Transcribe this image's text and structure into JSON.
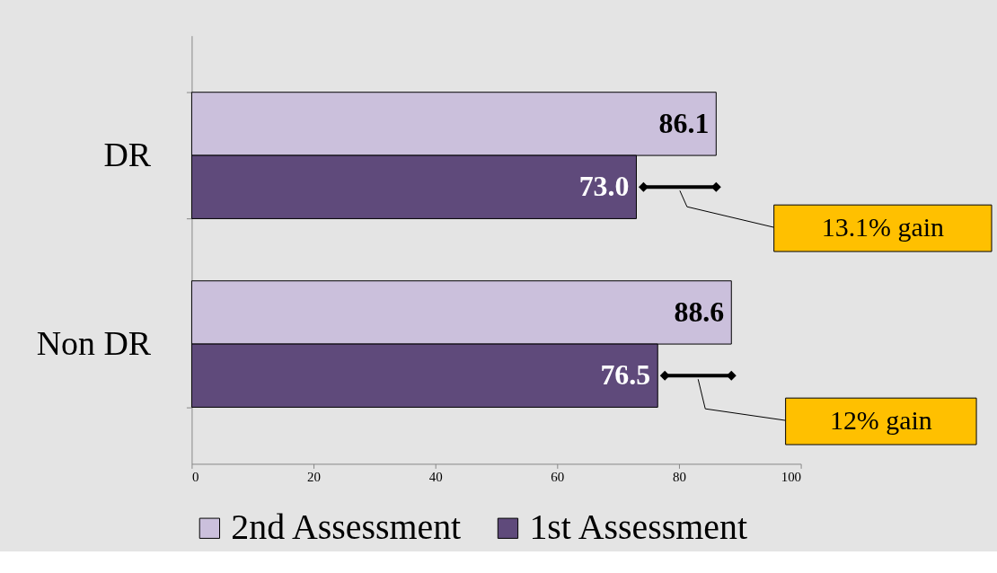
{
  "chart_data": {
    "type": "bar",
    "orientation": "horizontal",
    "categories": [
      "DR",
      "Non DR"
    ],
    "series": [
      {
        "name": "2nd Assessment",
        "color": "#cbc0dc",
        "values": [
          86.1,
          88.6
        ],
        "value_labels": [
          "86.1",
          "88.6"
        ]
      },
      {
        "name": "1st Assessment",
        "color": "#5f4a7b",
        "values": [
          73.0,
          76.5
        ],
        "value_labels": [
          "73.0",
          "76.5"
        ]
      }
    ],
    "xlim": [
      0,
      100
    ],
    "xticks": [
      0,
      20,
      40,
      60,
      80,
      100
    ],
    "grid": false,
    "legend": "bottom",
    "annotations": [
      "13.1% gain",
      "12% gain"
    ]
  }
}
